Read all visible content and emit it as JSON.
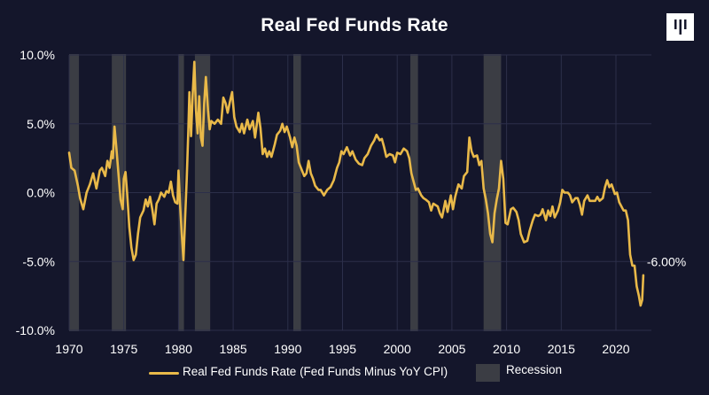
{
  "chart_data": {
    "type": "line",
    "title": "Real Fed Funds Rate",
    "xlabel": "",
    "ylabel": "",
    "xlim": [
      1970,
      2022.5
    ],
    "ylim": [
      -10,
      10
    ],
    "x_ticks": [
      "1970",
      "1975",
      "1980",
      "1985",
      "1990",
      "1995",
      "2000",
      "2005",
      "2010",
      "2015",
      "2020"
    ],
    "y_ticks": [
      "10.0%",
      "5.0%",
      "0.0%",
      "-5.0%",
      "-10.0%"
    ],
    "y_tick_values": [
      10,
      5,
      0,
      -5,
      -10
    ],
    "grid": true,
    "legend_position": "bottom",
    "end_label": "-6.00%",
    "colors": {
      "line": "#e9b949",
      "recession": "#3b3d44",
      "background": "#14162b",
      "grid": "#2c2f4a"
    },
    "series": [
      {
        "name": "Real Fed Funds Rate (Fed Funds Minus YoY CPI)",
        "points": [
          [
            1970.0,
            2.9
          ],
          [
            1970.2,
            1.8
          ],
          [
            1970.5,
            1.6
          ],
          [
            1970.8,
            0.5
          ],
          [
            1971.0,
            -0.4
          ],
          [
            1971.3,
            -1.2
          ],
          [
            1971.6,
            0.0
          ],
          [
            1971.9,
            0.6
          ],
          [
            1972.2,
            1.4
          ],
          [
            1972.5,
            0.3
          ],
          [
            1972.8,
            1.6
          ],
          [
            1973.0,
            1.8
          ],
          [
            1973.3,
            1.2
          ],
          [
            1973.5,
            2.3
          ],
          [
            1973.7,
            1.8
          ],
          [
            1973.9,
            3.0
          ],
          [
            1974.0,
            2.5
          ],
          [
            1974.15,
            4.8
          ],
          [
            1974.3,
            3.4
          ],
          [
            1974.5,
            1.5
          ],
          [
            1974.7,
            -0.5
          ],
          [
            1974.9,
            -1.2
          ],
          [
            1975.0,
            1.0
          ],
          [
            1975.15,
            1.5
          ],
          [
            1975.3,
            0.0
          ],
          [
            1975.5,
            -2.5
          ],
          [
            1975.7,
            -4.0
          ],
          [
            1975.9,
            -4.9
          ],
          [
            1976.1,
            -4.5
          ],
          [
            1976.3,
            -3.0
          ],
          [
            1976.5,
            -1.8
          ],
          [
            1976.8,
            -1.3
          ],
          [
            1977.0,
            -0.5
          ],
          [
            1977.2,
            -1.0
          ],
          [
            1977.4,
            -0.3
          ],
          [
            1977.6,
            -1.2
          ],
          [
            1977.8,
            -2.3
          ],
          [
            1978.0,
            -0.8
          ],
          [
            1978.2,
            -0.5
          ],
          [
            1978.4,
            0.0
          ],
          [
            1978.7,
            -0.3
          ],
          [
            1978.9,
            0.1
          ],
          [
            1979.1,
            0.0
          ],
          [
            1979.3,
            0.8
          ],
          [
            1979.5,
            -0.2
          ],
          [
            1979.7,
            -0.7
          ],
          [
            1979.9,
            -0.8
          ],
          [
            1980.0,
            1.6
          ],
          [
            1980.15,
            -1.0
          ],
          [
            1980.3,
            -3.0
          ],
          [
            1980.45,
            -4.9
          ],
          [
            1980.6,
            -2.0
          ],
          [
            1980.75,
            1.0
          ],
          [
            1980.9,
            4.5
          ],
          [
            1981.0,
            7.3
          ],
          [
            1981.15,
            4.1
          ],
          [
            1981.3,
            7.1
          ],
          [
            1981.45,
            9.5
          ],
          [
            1981.6,
            6.0
          ],
          [
            1981.75,
            4.3
          ],
          [
            1981.9,
            7.0
          ],
          [
            1982.05,
            4.0
          ],
          [
            1982.2,
            3.4
          ],
          [
            1982.35,
            6.5
          ],
          [
            1982.5,
            8.4
          ],
          [
            1982.7,
            6.0
          ],
          [
            1982.85,
            4.6
          ],
          [
            1983.0,
            5.2
          ],
          [
            1983.3,
            5.0
          ],
          [
            1983.6,
            5.3
          ],
          [
            1983.9,
            5.0
          ],
          [
            1984.1,
            6.9
          ],
          [
            1984.3,
            6.5
          ],
          [
            1984.5,
            5.8
          ],
          [
            1984.7,
            6.6
          ],
          [
            1984.9,
            7.3
          ],
          [
            1985.1,
            5.5
          ],
          [
            1985.3,
            4.8
          ],
          [
            1985.6,
            4.4
          ],
          [
            1985.8,
            5.0
          ],
          [
            1986.0,
            4.3
          ],
          [
            1986.3,
            5.3
          ],
          [
            1986.5,
            4.6
          ],
          [
            1986.8,
            5.2
          ],
          [
            1987.0,
            4.0
          ],
          [
            1987.3,
            5.8
          ],
          [
            1987.5,
            4.7
          ],
          [
            1987.7,
            2.8
          ],
          [
            1987.9,
            3.2
          ],
          [
            1988.1,
            2.6
          ],
          [
            1988.3,
            3.0
          ],
          [
            1988.5,
            2.6
          ],
          [
            1988.8,
            3.5
          ],
          [
            1989.0,
            4.2
          ],
          [
            1989.3,
            4.5
          ],
          [
            1989.5,
            5.0
          ],
          [
            1989.7,
            4.4
          ],
          [
            1989.9,
            4.8
          ],
          [
            1990.2,
            4.0
          ],
          [
            1990.4,
            3.3
          ],
          [
            1990.6,
            4.0
          ],
          [
            1990.8,
            3.4
          ],
          [
            1991.0,
            2.2
          ],
          [
            1991.3,
            1.6
          ],
          [
            1991.5,
            1.2
          ],
          [
            1991.7,
            1.4
          ],
          [
            1991.9,
            2.3
          ],
          [
            1992.1,
            1.4
          ],
          [
            1992.3,
            1.0
          ],
          [
            1992.5,
            0.5
          ],
          [
            1992.8,
            0.2
          ],
          [
            1993.0,
            0.2
          ],
          [
            1993.3,
            -0.2
          ],
          [
            1993.6,
            0.2
          ],
          [
            1993.9,
            0.4
          ],
          [
            1994.2,
            0.9
          ],
          [
            1994.5,
            1.8
          ],
          [
            1994.7,
            2.2
          ],
          [
            1994.9,
            3.0
          ],
          [
            1995.1,
            2.8
          ],
          [
            1995.4,
            3.3
          ],
          [
            1995.7,
            2.7
          ],
          [
            1995.9,
            3.0
          ],
          [
            1996.2,
            2.4
          ],
          [
            1996.5,
            2.1
          ],
          [
            1996.8,
            2.0
          ],
          [
            1997.0,
            2.5
          ],
          [
            1997.3,
            2.8
          ],
          [
            1997.6,
            3.4
          ],
          [
            1997.9,
            3.8
          ],
          [
            1998.1,
            4.2
          ],
          [
            1998.4,
            3.8
          ],
          [
            1998.6,
            3.9
          ],
          [
            1998.8,
            3.3
          ],
          [
            1999.0,
            2.6
          ],
          [
            1999.3,
            2.8
          ],
          [
            1999.6,
            2.7
          ],
          [
            1999.8,
            2.2
          ],
          [
            2000.0,
            2.9
          ],
          [
            2000.3,
            2.8
          ],
          [
            2000.6,
            3.2
          ],
          [
            2000.9,
            3.0
          ],
          [
            2001.1,
            2.5
          ],
          [
            2001.3,
            1.4
          ],
          [
            2001.5,
            0.8
          ],
          [
            2001.7,
            0.2
          ],
          [
            2001.9,
            0.3
          ],
          [
            2002.2,
            -0.2
          ],
          [
            2002.4,
            -0.4
          ],
          [
            2002.6,
            -0.5
          ],
          [
            2002.9,
            -0.7
          ],
          [
            2003.1,
            -1.3
          ],
          [
            2003.3,
            -0.8
          ],
          [
            2003.5,
            -0.9
          ],
          [
            2003.7,
            -1.0
          ],
          [
            2003.9,
            -1.5
          ],
          [
            2004.1,
            -1.8
          ],
          [
            2004.4,
            -0.6
          ],
          [
            2004.6,
            -1.4
          ],
          [
            2004.9,
            -0.2
          ],
          [
            2005.1,
            -1.2
          ],
          [
            2005.3,
            -0.3
          ],
          [
            2005.6,
            0.6
          ],
          [
            2005.9,
            0.3
          ],
          [
            2006.1,
            1.2
          ],
          [
            2006.4,
            1.5
          ],
          [
            2006.6,
            4.0
          ],
          [
            2006.8,
            3.0
          ],
          [
            2007.0,
            2.6
          ],
          [
            2007.3,
            2.7
          ],
          [
            2007.5,
            2.0
          ],
          [
            2007.7,
            2.3
          ],
          [
            2007.9,
            0.3
          ],
          [
            2008.1,
            -0.5
          ],
          [
            2008.3,
            -1.5
          ],
          [
            2008.5,
            -3.0
          ],
          [
            2008.7,
            -3.6
          ],
          [
            2008.9,
            -1.5
          ],
          [
            2009.1,
            -0.5
          ],
          [
            2009.3,
            0.3
          ],
          [
            2009.5,
            2.3
          ],
          [
            2009.7,
            1.0
          ],
          [
            2009.9,
            -2.2
          ],
          [
            2010.1,
            -2.3
          ],
          [
            2010.4,
            -1.2
          ],
          [
            2010.6,
            -1.1
          ],
          [
            2010.9,
            -1.4
          ],
          [
            2011.1,
            -2.0
          ],
          [
            2011.3,
            -3.0
          ],
          [
            2011.6,
            -3.6
          ],
          [
            2011.9,
            -3.5
          ],
          [
            2012.1,
            -2.8
          ],
          [
            2012.4,
            -2.0
          ],
          [
            2012.6,
            -1.6
          ],
          [
            2012.9,
            -1.7
          ],
          [
            2013.1,
            -1.6
          ],
          [
            2013.3,
            -1.2
          ],
          [
            2013.6,
            -2.0
          ],
          [
            2013.8,
            -1.3
          ],
          [
            2014.0,
            -1.7
          ],
          [
            2014.2,
            -1.0
          ],
          [
            2014.4,
            -1.8
          ],
          [
            2014.7,
            -1.3
          ],
          [
            2014.9,
            -0.7
          ],
          [
            2015.1,
            0.2
          ],
          [
            2015.3,
            0.0
          ],
          [
            2015.6,
            0.0
          ],
          [
            2015.8,
            -0.2
          ],
          [
            2016.0,
            -0.7
          ],
          [
            2016.3,
            -0.4
          ],
          [
            2016.5,
            -0.4
          ],
          [
            2016.7,
            -0.9
          ],
          [
            2016.9,
            -1.6
          ],
          [
            2017.1,
            -0.6
          ],
          [
            2017.4,
            -0.2
          ],
          [
            2017.6,
            -0.6
          ],
          [
            2017.8,
            -0.6
          ],
          [
            2018.1,
            -0.6
          ],
          [
            2018.3,
            -0.3
          ],
          [
            2018.5,
            -0.6
          ],
          [
            2018.8,
            -0.4
          ],
          [
            2019.0,
            0.4
          ],
          [
            2019.2,
            0.9
          ],
          [
            2019.4,
            0.4
          ],
          [
            2019.6,
            0.6
          ],
          [
            2019.9,
            -0.1
          ],
          [
            2020.1,
            0.0
          ],
          [
            2020.3,
            -0.7
          ],
          [
            2020.5,
            -1.0
          ],
          [
            2020.7,
            -1.3
          ],
          [
            2020.9,
            -1.3
          ],
          [
            2021.1,
            -2.0
          ],
          [
            2021.3,
            -4.5
          ],
          [
            2021.5,
            -5.3
          ],
          [
            2021.7,
            -5.3
          ],
          [
            2021.9,
            -6.8
          ],
          [
            2022.1,
            -7.5
          ],
          [
            2022.25,
            -8.2
          ],
          [
            2022.4,
            -7.8
          ],
          [
            2022.5,
            -6.0
          ]
        ]
      }
    ],
    "recession_label": "Recession",
    "recessions": [
      [
        1970.0,
        1970.9
      ],
      [
        1973.9,
        1975.2
      ],
      [
        1980.0,
        1980.5
      ],
      [
        1981.5,
        1982.9
      ],
      [
        1990.5,
        1991.2
      ],
      [
        2001.2,
        2001.9
      ],
      [
        2007.9,
        2009.5
      ]
    ]
  }
}
